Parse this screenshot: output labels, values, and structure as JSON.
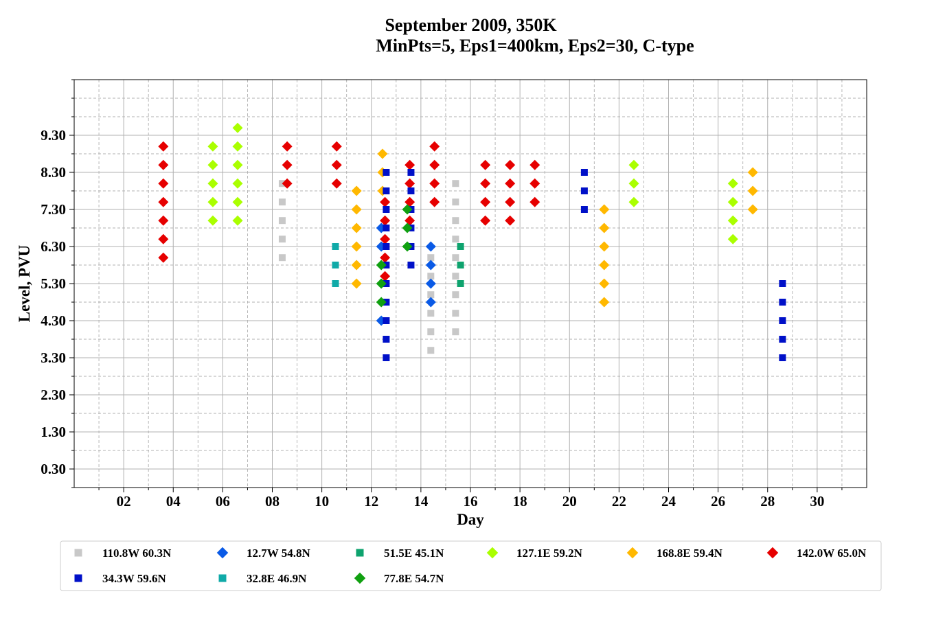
{
  "chart_data": {
    "type": "scatter",
    "title": "September 2009, 350K",
    "subtitle": "MinPts=5, Eps1=400km, Eps2=30, C-type",
    "xlabel": "Day",
    "ylabel": "Level, PVU",
    "xlim": [
      0.0,
      32.0
    ],
    "ylim": [
      -0.2,
      10.8
    ],
    "xticks": [
      2,
      4,
      6,
      8,
      10,
      12,
      14,
      16,
      18,
      20,
      22,
      24,
      26,
      28,
      30
    ],
    "xtick_labels": [
      "02",
      "04",
      "06",
      "08",
      "10",
      "12",
      "14",
      "16",
      "18",
      "20",
      "22",
      "24",
      "26",
      "28",
      "30"
    ],
    "yticks": [
      0.3,
      1.3,
      2.3,
      3.3,
      4.3,
      5.3,
      6.3,
      7.3,
      8.3,
      9.3
    ],
    "ytick_labels": [
      "0.30",
      "1.30",
      "2.30",
      "3.30",
      "4.30",
      "5.30",
      "6.30",
      "7.30",
      "8.30",
      "9.30"
    ],
    "grid": true,
    "legend_position": "bottom",
    "series": [
      {
        "name": "110.8W 60.3N",
        "marker": "square",
        "color": "#c8c8c8",
        "points": [
          [
            8.4,
            8.0
          ],
          [
            8.4,
            7.5
          ],
          [
            8.4,
            7.0
          ],
          [
            8.4,
            6.5
          ],
          [
            8.4,
            6.0
          ],
          [
            14.4,
            6.0
          ],
          [
            14.4,
            5.5
          ],
          [
            14.4,
            5.0
          ],
          [
            14.4,
            4.5
          ],
          [
            14.4,
            4.0
          ],
          [
            14.4,
            3.5
          ],
          [
            15.4,
            8.0
          ],
          [
            15.4,
            7.5
          ],
          [
            15.4,
            7.0
          ],
          [
            15.4,
            6.5
          ],
          [
            15.4,
            6.0
          ],
          [
            15.4,
            5.5
          ],
          [
            15.4,
            5.0
          ],
          [
            15.4,
            4.5
          ],
          [
            15.4,
            4.0
          ]
        ]
      },
      {
        "name": "12.7W 54.8N",
        "marker": "diamond",
        "color": "#0a5ae6",
        "points": [
          [
            12.4,
            6.8
          ],
          [
            12.4,
            6.3
          ],
          [
            12.4,
            4.3
          ],
          [
            14.4,
            6.3
          ],
          [
            14.4,
            5.8
          ],
          [
            14.4,
            5.3
          ],
          [
            14.4,
            4.8
          ]
        ]
      },
      {
        "name": "51.5E 45.1N",
        "marker": "square",
        "color": "#0ea36e",
        "points": [
          [
            15.6,
            6.3
          ],
          [
            15.6,
            5.8
          ],
          [
            15.6,
            5.3
          ]
        ]
      },
      {
        "name": "127.1E 59.2N",
        "marker": "diamond",
        "color": "#aaff00",
        "points": [
          [
            5.6,
            9.0
          ],
          [
            5.6,
            8.5
          ],
          [
            5.6,
            8.0
          ],
          [
            5.6,
            7.5
          ],
          [
            5.6,
            7.0
          ],
          [
            6.6,
            9.5
          ],
          [
            6.6,
            9.0
          ],
          [
            6.6,
            8.5
          ],
          [
            6.6,
            8.0
          ],
          [
            6.6,
            7.5
          ],
          [
            6.6,
            7.0
          ],
          [
            22.6,
            8.5
          ],
          [
            22.6,
            8.0
          ],
          [
            22.6,
            7.5
          ],
          [
            26.6,
            8.0
          ],
          [
            26.6,
            7.5
          ],
          [
            26.6,
            7.0
          ],
          [
            26.6,
            6.5
          ]
        ]
      },
      {
        "name": "168.8E 59.4N",
        "marker": "diamond",
        "color": "#ffb800",
        "points": [
          [
            11.4,
            7.8
          ],
          [
            11.4,
            7.3
          ],
          [
            11.4,
            6.8
          ],
          [
            11.4,
            6.3
          ],
          [
            11.4,
            5.8
          ],
          [
            11.4,
            5.3
          ],
          [
            12.45,
            8.8
          ],
          [
            12.45,
            8.3
          ],
          [
            12.45,
            7.8
          ],
          [
            21.4,
            7.3
          ],
          [
            21.4,
            6.8
          ],
          [
            21.4,
            6.3
          ],
          [
            21.4,
            5.8
          ],
          [
            21.4,
            5.3
          ],
          [
            21.4,
            4.8
          ],
          [
            27.4,
            8.3
          ],
          [
            27.4,
            7.8
          ],
          [
            27.4,
            7.3
          ]
        ]
      },
      {
        "name": "142.0W 65.0N",
        "marker": "diamond",
        "color": "#e60000",
        "points": [
          [
            3.6,
            9.0
          ],
          [
            3.6,
            8.5
          ],
          [
            3.6,
            8.0
          ],
          [
            3.6,
            7.5
          ],
          [
            3.6,
            7.0
          ],
          [
            3.6,
            6.5
          ],
          [
            3.6,
            6.0
          ],
          [
            8.6,
            9.0
          ],
          [
            8.6,
            8.5
          ],
          [
            8.6,
            8.0
          ],
          [
            10.6,
            9.0
          ],
          [
            10.6,
            8.5
          ],
          [
            10.6,
            8.0
          ],
          [
            12.55,
            7.5
          ],
          [
            12.55,
            7.0
          ],
          [
            12.55,
            6.5
          ],
          [
            12.55,
            6.0
          ],
          [
            12.55,
            5.5
          ],
          [
            13.55,
            8.5
          ],
          [
            13.55,
            8.0
          ],
          [
            13.55,
            7.5
          ],
          [
            13.55,
            7.0
          ],
          [
            14.55,
            9.0
          ],
          [
            14.55,
            8.5
          ],
          [
            14.55,
            8.0
          ],
          [
            14.55,
            7.5
          ],
          [
            16.6,
            8.5
          ],
          [
            16.6,
            8.0
          ],
          [
            16.6,
            7.5
          ],
          [
            16.6,
            7.0
          ],
          [
            17.6,
            8.5
          ],
          [
            17.6,
            8.0
          ],
          [
            17.6,
            7.5
          ],
          [
            17.6,
            7.0
          ],
          [
            18.6,
            8.5
          ],
          [
            18.6,
            8.0
          ],
          [
            18.6,
            7.5
          ]
        ]
      },
      {
        "name": "34.3W 59.6N",
        "marker": "square",
        "color": "#0010c8",
        "points": [
          [
            12.6,
            8.3
          ],
          [
            12.6,
            7.8
          ],
          [
            12.6,
            7.3
          ],
          [
            12.6,
            6.8
          ],
          [
            12.6,
            6.3
          ],
          [
            12.6,
            5.8
          ],
          [
            12.6,
            5.3
          ],
          [
            12.6,
            4.8
          ],
          [
            12.6,
            4.3
          ],
          [
            12.6,
            3.8
          ],
          [
            12.6,
            3.3
          ],
          [
            13.6,
            8.3
          ],
          [
            13.6,
            7.8
          ],
          [
            13.6,
            7.3
          ],
          [
            13.6,
            6.8
          ],
          [
            13.6,
            6.3
          ],
          [
            13.6,
            5.8
          ],
          [
            20.6,
            8.3
          ],
          [
            20.6,
            7.8
          ],
          [
            20.6,
            7.3
          ],
          [
            28.6,
            5.3
          ],
          [
            28.6,
            4.8
          ],
          [
            28.6,
            4.3
          ],
          [
            28.6,
            3.8
          ],
          [
            28.6,
            3.3
          ]
        ]
      },
      {
        "name": "32.8E 46.9N",
        "marker": "square",
        "color": "#10aaa8",
        "points": [
          [
            10.55,
            6.3
          ],
          [
            10.55,
            5.8
          ],
          [
            10.55,
            5.3
          ]
        ]
      },
      {
        "name": "77.8E 54.7N",
        "marker": "diamond",
        "color": "#10a010",
        "points": [
          [
            12.4,
            5.8
          ],
          [
            12.4,
            5.3
          ],
          [
            12.4,
            4.8
          ],
          [
            13.45,
            7.3
          ],
          [
            13.45,
            6.8
          ],
          [
            13.45,
            6.3
          ]
        ]
      }
    ]
  }
}
